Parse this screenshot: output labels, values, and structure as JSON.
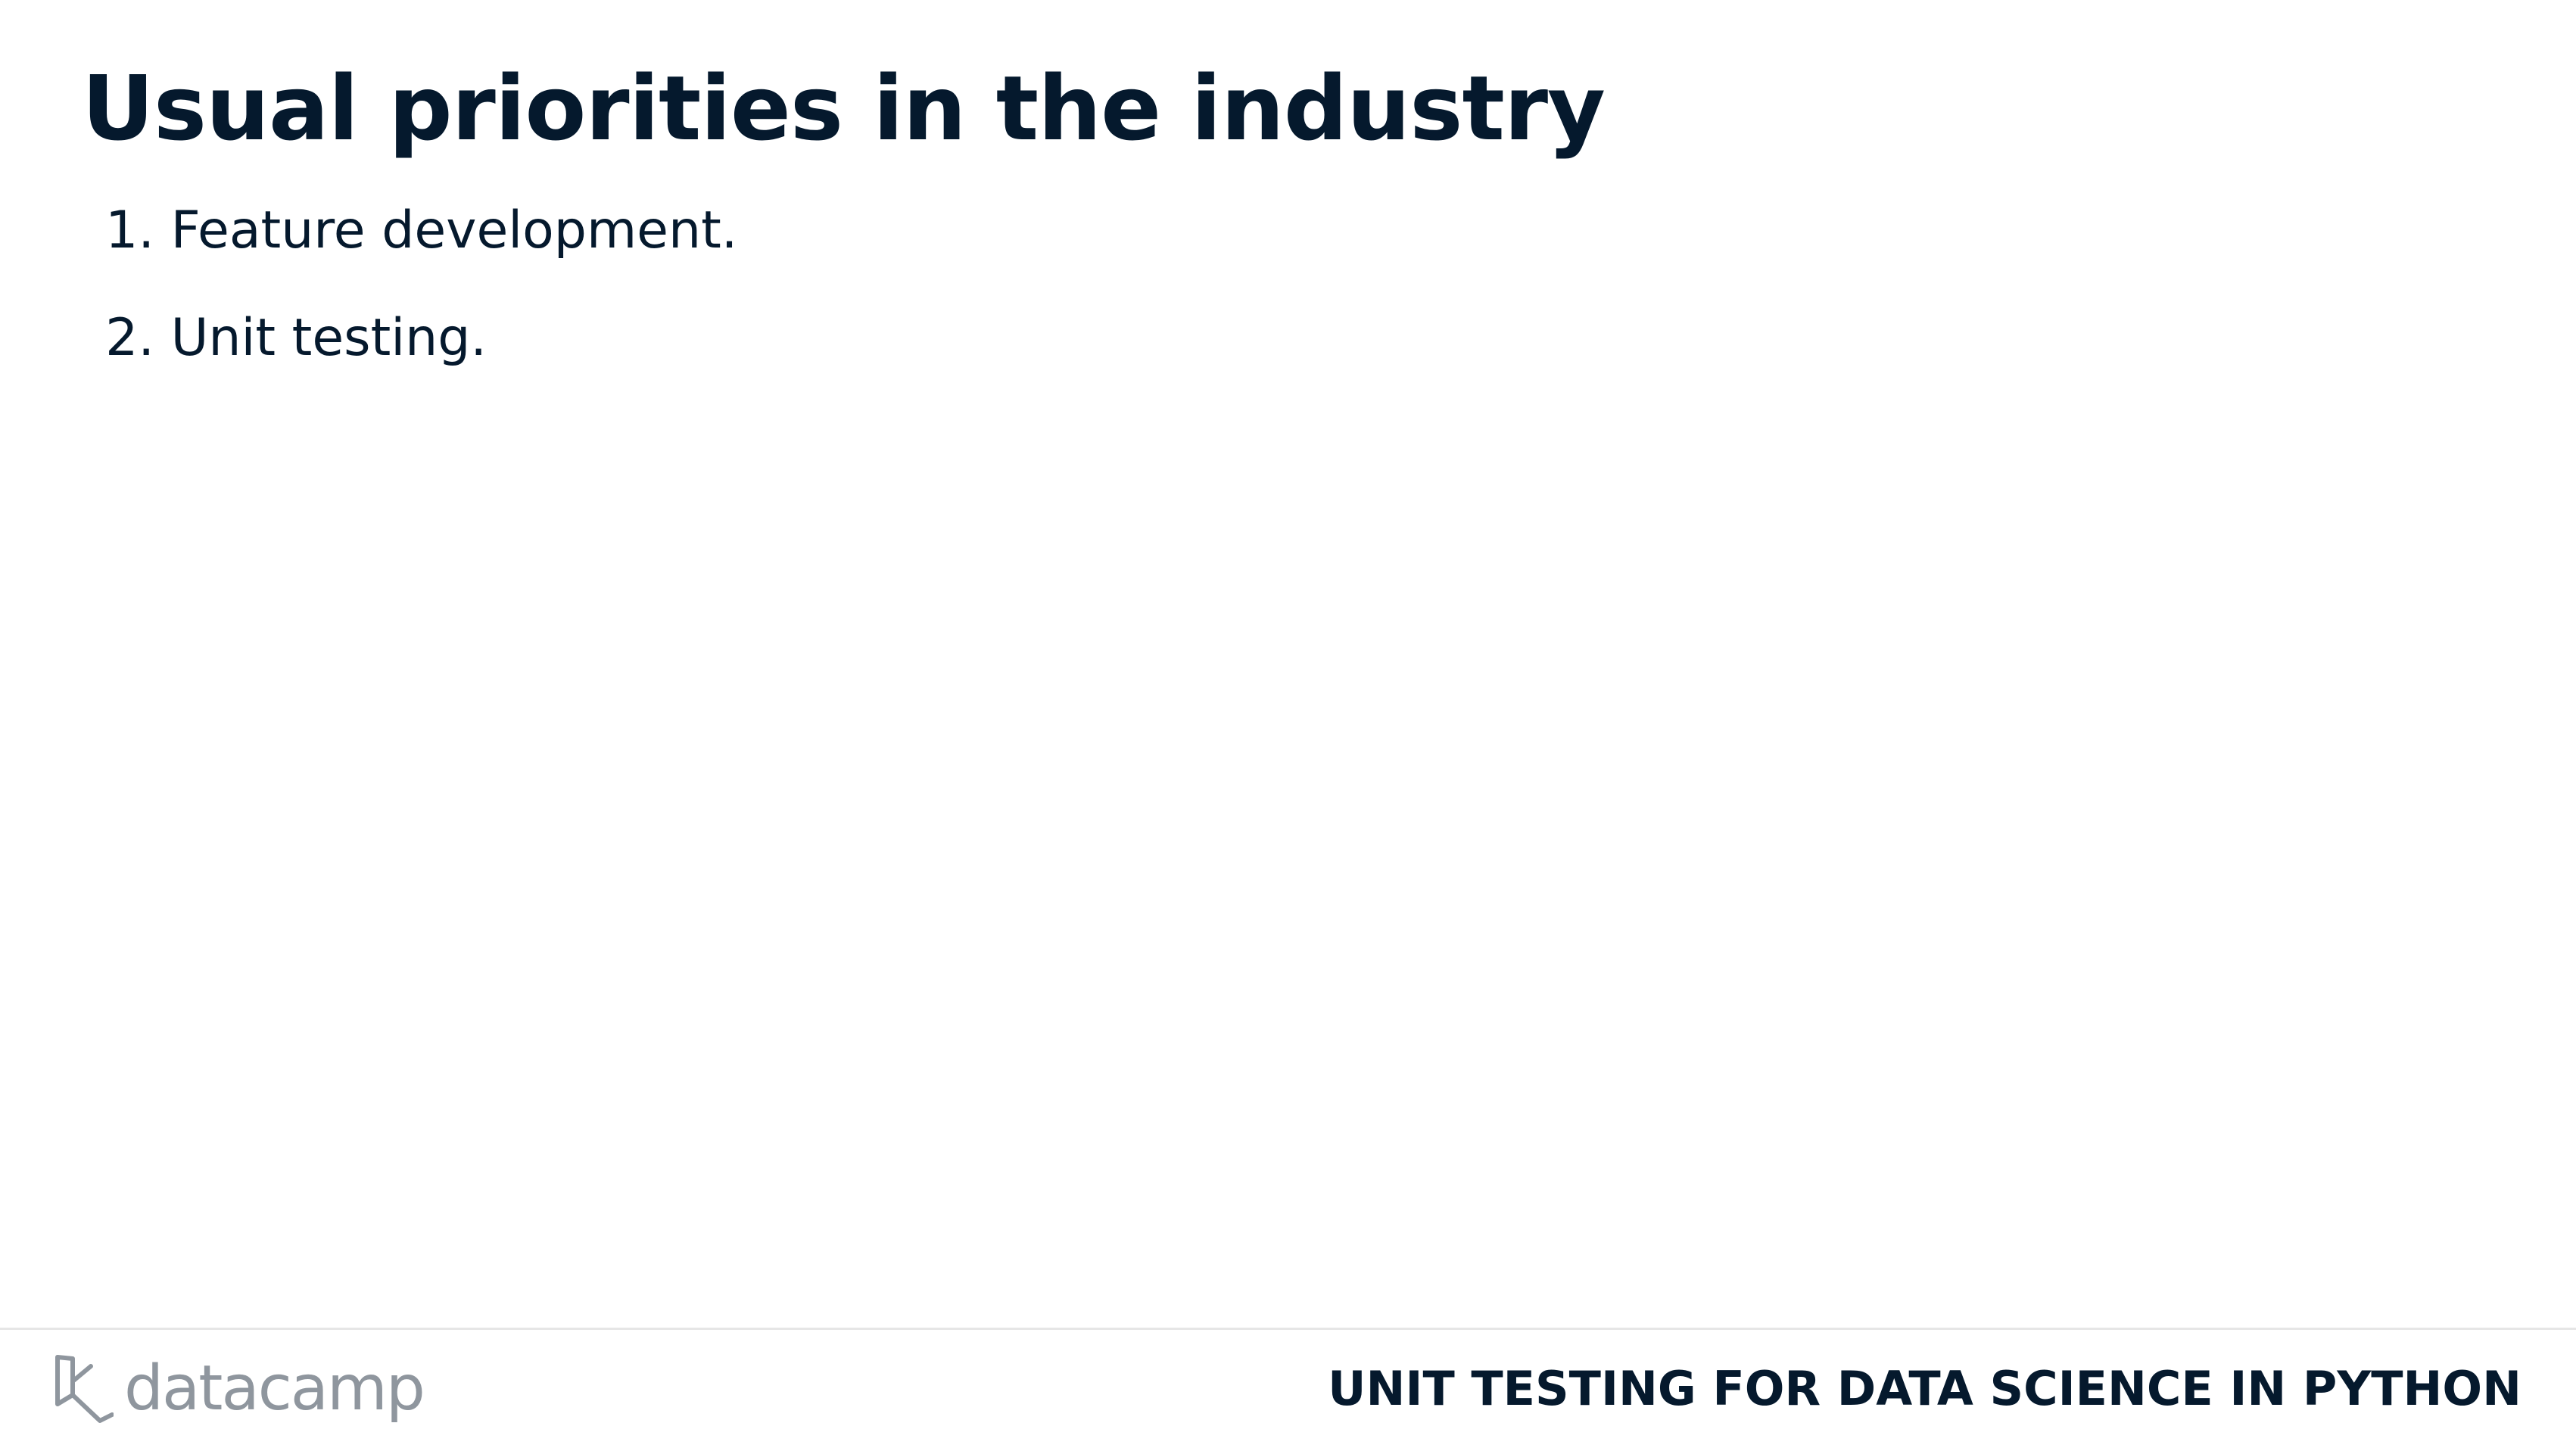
{
  "slide": {
    "title": "Usual priorities in the industry",
    "items": [
      {
        "number": "1.",
        "text": "Feature development."
      },
      {
        "number": "2.",
        "text": "Unit testing."
      }
    ]
  },
  "footer": {
    "logo_text": "datacamp",
    "logo_icon": "datacamp-logo-icon",
    "course_title": "UNIT TESTING FOR DATA SCIENCE IN PYTHON"
  },
  "colors": {
    "text": "#05192D",
    "logo_gray": "#8f969e",
    "divider": "#e6e6e6"
  }
}
